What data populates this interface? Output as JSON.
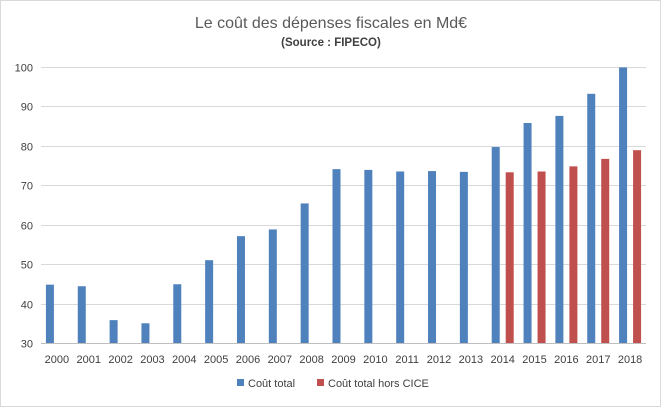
{
  "chart_data": {
    "type": "bar",
    "title": "Le coût des dépenses fiscales en Md€",
    "subtitle": "(Source : FIPECO)",
    "xlabel": "",
    "ylabel": "",
    "ylim": [
      30,
      100
    ],
    "yticks": [
      30,
      40,
      50,
      60,
      70,
      80,
      90,
      100
    ],
    "grid": true,
    "legend_position": "bottom",
    "categories": [
      "2000",
      "2001",
      "2002",
      "2003",
      "2004",
      "2005",
      "2006",
      "2007",
      "2008",
      "2009",
      "2010",
      "2011",
      "2012",
      "2013",
      "2014",
      "2015",
      "2016",
      "2017",
      "2018"
    ],
    "series": [
      {
        "name": "Coût total",
        "color": "#4f81bd",
        "values": [
          44.8,
          44.4,
          35.8,
          35.0,
          44.9,
          51.0,
          57.1,
          58.8,
          65.4,
          74.1,
          73.9,
          73.5,
          73.6,
          73.4,
          79.7,
          85.8,
          87.6,
          93.2,
          99.9
        ]
      },
      {
        "name": "Coût total hors CICE",
        "color": "#c0504d",
        "values": [
          null,
          null,
          null,
          null,
          null,
          null,
          null,
          null,
          null,
          null,
          null,
          null,
          null,
          null,
          73.3,
          73.5,
          74.8,
          76.7,
          78.9
        ]
      }
    ]
  }
}
